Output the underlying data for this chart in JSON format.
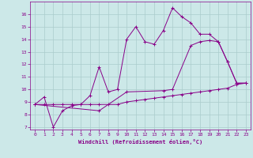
{
  "xlabel": "Windchill (Refroidissement éolien,°C)",
  "background_color": "#cce8e8",
  "line_color": "#880088",
  "grid_color": "#aacccc",
  "xlim": [
    -0.5,
    23.5
  ],
  "ylim": [
    6.8,
    17.0
  ],
  "yticks": [
    7,
    8,
    9,
    10,
    11,
    12,
    13,
    14,
    15,
    16
  ],
  "xticks": [
    0,
    1,
    2,
    3,
    4,
    5,
    6,
    7,
    8,
    9,
    10,
    11,
    12,
    13,
    14,
    15,
    16,
    17,
    18,
    19,
    20,
    21,
    22,
    23
  ],
  "series": [
    {
      "x": [
        0,
        1,
        2,
        3,
        4,
        5,
        6,
        7,
        8,
        9,
        10,
        11,
        12,
        13,
        14,
        15,
        16,
        17,
        18,
        19,
        20,
        21,
        22,
        23
      ],
      "y": [
        8.8,
        9.4,
        7.0,
        8.3,
        8.7,
        8.8,
        9.5,
        11.8,
        9.8,
        10.0,
        14.0,
        15.0,
        13.8,
        13.6,
        14.7,
        16.5,
        15.8,
        15.3,
        14.4,
        14.4,
        13.8,
        12.2,
        10.5,
        10.5
      ]
    },
    {
      "x": [
        0,
        7,
        10,
        14,
        15,
        17,
        18,
        19,
        20,
        21,
        22,
        23
      ],
      "y": [
        8.8,
        8.3,
        9.8,
        9.9,
        10.0,
        13.5,
        13.8,
        13.9,
        13.8,
        12.2,
        10.5,
        10.5
      ]
    },
    {
      "x": [
        0,
        1,
        2,
        3,
        4,
        5,
        6,
        7,
        8,
        9,
        10,
        11,
        12,
        13,
        14,
        15,
        16,
        17,
        18,
        19,
        20,
        21,
        22,
        23
      ],
      "y": [
        8.8,
        8.8,
        8.8,
        8.8,
        8.8,
        8.8,
        8.8,
        8.8,
        8.8,
        8.8,
        9.0,
        9.1,
        9.2,
        9.3,
        9.4,
        9.5,
        9.6,
        9.7,
        9.8,
        9.9,
        10.0,
        10.1,
        10.4,
        10.5
      ]
    }
  ]
}
